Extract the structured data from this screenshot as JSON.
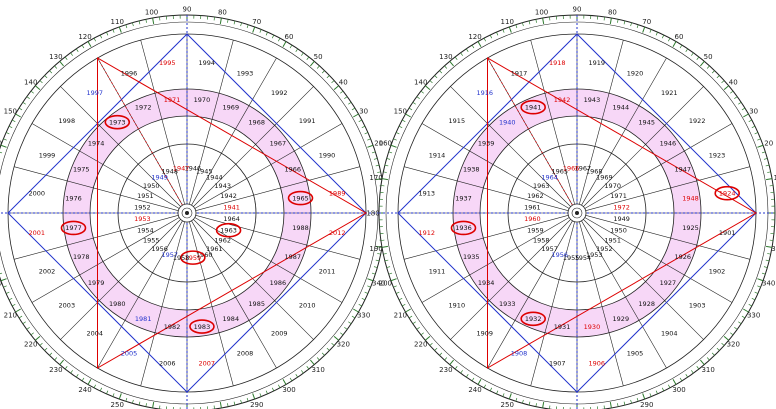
{
  "colors": {
    "ring_fill": "#f7d7f7",
    "grid": "#222222",
    "tick": "#2c7a2c",
    "red": "#dd0000",
    "blue": "#2233cc",
    "highlight": "#dd0000"
  },
  "degree_labels": [
    "0",
    "10",
    "20",
    "30",
    "40",
    "50",
    "60",
    "70",
    "80",
    "90",
    "100",
    "110",
    "120",
    "130",
    "140",
    "150",
    "160",
    "170",
    "180",
    "190",
    "200",
    "210",
    "220",
    "230",
    "240",
    "250",
    "260",
    "270",
    "280",
    "290",
    "300",
    "310",
    "320",
    "330",
    "340",
    "350"
  ],
  "wheels": [
    {
      "name": "left-wheel",
      "outer": {
        "years": [
          "1994",
          "1993",
          "1992",
          "1991",
          "1990",
          "1989",
          "2012",
          "2011",
          "2010",
          "2009",
          "2008",
          "2007",
          "2006",
          "2005",
          "2004",
          "2003",
          "2002",
          "2001",
          "2000",
          "1999",
          "1998",
          "1997",
          "1996",
          "1995"
        ],
        "red": [
          5,
          6,
          11,
          17,
          23
        ],
        "blue": [
          13,
          21
        ],
        "circled": []
      },
      "middle": {
        "years": [
          "1970",
          "1969",
          "1968",
          "1967",
          "1966",
          "1965",
          "1988",
          "1987",
          "1986",
          "1985",
          "1984",
          "1983",
          "1982",
          "1981",
          "1980",
          "1979",
          "1978",
          "1977",
          "1976",
          "1975",
          "1974",
          "1973",
          "1972",
          "1971"
        ],
        "red": [
          23
        ],
        "blue": [
          13
        ],
        "circled": [
          5,
          11,
          17,
          21
        ]
      },
      "inner": {
        "years": [
          "1946",
          "1945",
          "1944",
          "1943",
          "1942",
          "1941",
          "1964",
          "1963",
          "1962",
          "1961",
          "1960",
          "1959",
          "1958",
          "1957",
          "1956",
          "1955",
          "1954",
          "1953",
          "1952",
          "1951",
          "1950",
          "1949",
          "1948",
          "1947"
        ],
        "red": [
          5,
          11,
          17,
          23
        ],
        "blue": [
          13,
          21
        ],
        "circled": [
          7,
          11
        ]
      }
    },
    {
      "name": "right-wheel",
      "outer": {
        "years": [
          "1919",
          "1920",
          "1921",
          "1922",
          "1923",
          "1924",
          "1901",
          "1902",
          "1903",
          "1904",
          "1905",
          "1906",
          "1907",
          "1908",
          "1909",
          "1910",
          "1911",
          "1912",
          "1913",
          "1914",
          "1915",
          "1916",
          "1917",
          "1918"
        ],
        "red": [
          5,
          11,
          17,
          23
        ],
        "blue": [
          13,
          21
        ],
        "circled": [
          5
        ]
      },
      "middle": {
        "years": [
          "1943",
          "1944",
          "1945",
          "1946",
          "1947",
          "1948",
          "1925",
          "1926",
          "1927",
          "1928",
          "1929",
          "1930",
          "1931",
          "1932",
          "1933",
          "1934",
          "1935",
          "1936",
          "1937",
          "1938",
          "1939",
          "1940",
          "1941",
          "1942"
        ],
        "red": [
          5,
          11,
          23
        ],
        "blue": [
          21
        ],
        "circled": [
          13,
          17,
          22
        ]
      },
      "inner": {
        "years": [
          "1967",
          "1968",
          "1969",
          "1970",
          "1971",
          "1972",
          "1949",
          "1950",
          "1951",
          "1952",
          "1953",
          "1954",
          "1955",
          "1956",
          "1957",
          "1958",
          "1959",
          "1960",
          "1961",
          "1962",
          "1963",
          "1964",
          "1965",
          "1966"
        ],
        "red": [
          5,
          17,
          23
        ],
        "blue": [
          13,
          21
        ],
        "circled": []
      }
    }
  ]
}
